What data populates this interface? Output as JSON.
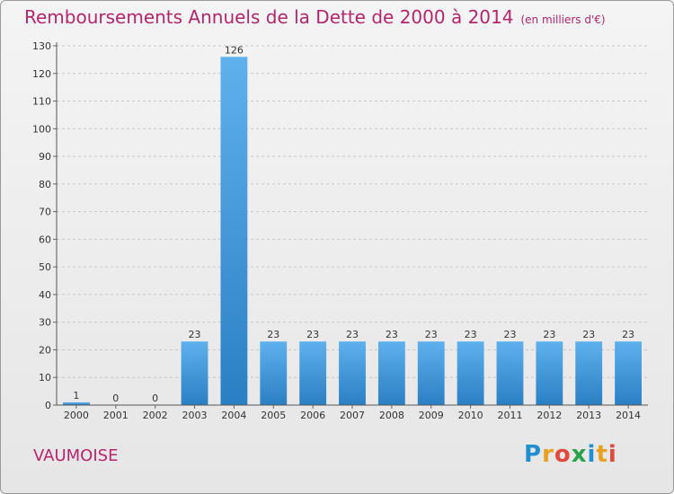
{
  "header": {
    "title": "Remboursements Annuels de la Dette de 2000 à 2014",
    "subtitle": "(en milliers d'€)"
  },
  "footer": {
    "commune": "VAUMOISE",
    "logo_letters": [
      "P",
      "r",
      "o",
      "x",
      "i",
      "t",
      "i"
    ],
    "logo_colors": [
      "#1f8fd0",
      "#e8a020",
      "#e04a3c",
      "#2aa24a",
      "#1f8fd0",
      "#e8a020",
      "#e04a3c"
    ]
  },
  "chart_data": {
    "type": "bar",
    "categories": [
      "2000",
      "2001",
      "2002",
      "2003",
      "2004",
      "2005",
      "2006",
      "2007",
      "2008",
      "2009",
      "2010",
      "2011",
      "2012",
      "2013",
      "2014"
    ],
    "values": [
      1,
      0,
      0,
      23,
      126,
      23,
      23,
      23,
      23,
      23,
      23,
      23,
      23,
      23,
      23
    ],
    "ylim": [
      0,
      130
    ],
    "yticks": [
      0,
      10,
      20,
      30,
      40,
      50,
      60,
      70,
      80,
      90,
      100,
      110,
      120,
      130
    ],
    "grid": true,
    "bar_color": "#3d9ae0"
  }
}
